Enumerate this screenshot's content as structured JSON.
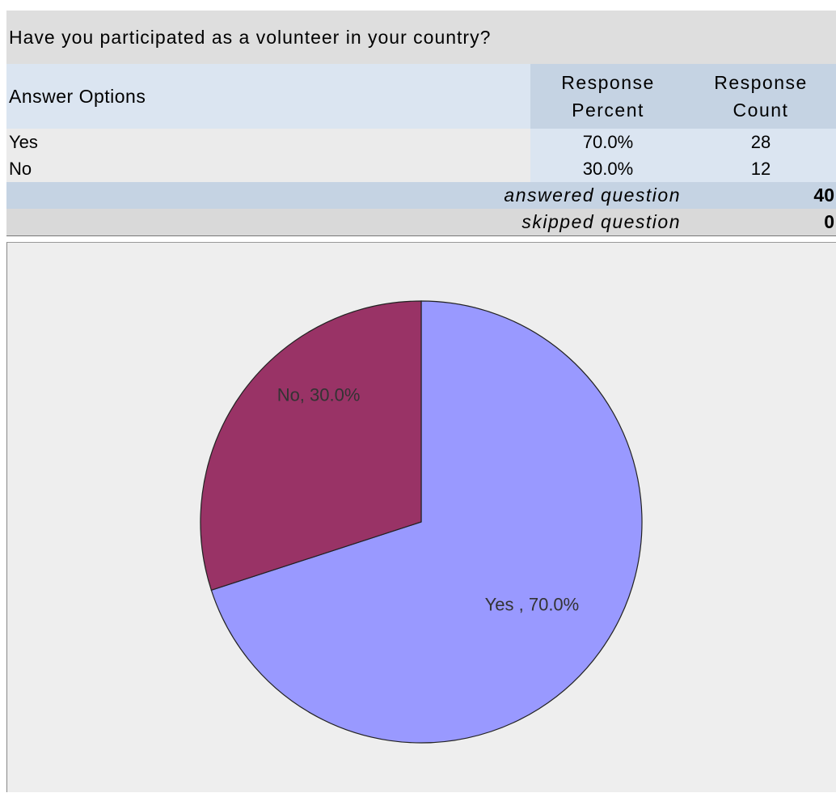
{
  "question": "Have you participated as a volunteer in your country?",
  "table": {
    "headers": {
      "answer_options": "Answer Options",
      "response_percent_line1": "Response",
      "response_percent_line2": "Percent",
      "response_count_line1": "Response",
      "response_count_line2": "Count"
    },
    "rows": [
      {
        "option": "Yes",
        "percent": "70.0%",
        "count": "28"
      },
      {
        "option": "No",
        "percent": "30.0%",
        "count": "12"
      }
    ],
    "answered_label": "answered question",
    "answered_value": "40",
    "skipped_label": "skipped question",
    "skipped_value": "0"
  },
  "chart_data": {
    "type": "pie",
    "title": "",
    "categories": [
      "Yes",
      "No"
    ],
    "values": [
      70.0,
      30.0
    ],
    "labels": [
      "Yes , 70.0%",
      "No, 30.0%"
    ],
    "colors": [
      "#9999ff",
      "#993366"
    ],
    "start_angle_deg": 0,
    "direction": "clockwise",
    "legend": "none"
  }
}
